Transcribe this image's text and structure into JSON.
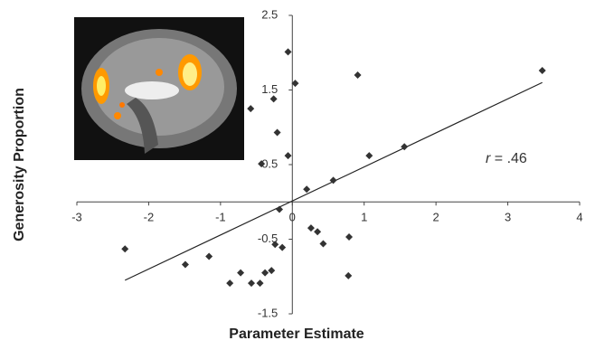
{
  "chart_data": {
    "type": "scatter",
    "xlabel": "Parameter Estimate",
    "ylabel": "Generosity Proportion",
    "annotation": {
      "symbol": "r",
      "text": "= .46"
    },
    "xlim": [
      -3,
      4
    ],
    "xticks": [
      -3,
      -2,
      -1,
      0,
      1,
      2,
      3,
      4
    ],
    "ylim": [
      -1.5,
      2.5
    ],
    "yticks": [
      -1.5,
      -0.5,
      0.5,
      1.5,
      2.5
    ],
    "color": "#333333",
    "x": [
      -2.33,
      -1.49,
      -1.16,
      -0.87,
      -0.72,
      -0.57,
      -0.45,
      -0.38,
      -0.29,
      -0.58,
      -0.26,
      -0.21,
      -0.24,
      -0.18,
      -0.14,
      -0.43,
      -0.06,
      -0.06,
      0.04,
      0.2,
      0.26,
      0.35,
      0.43,
      0.57,
      0.79,
      0.78,
      0.91,
      1.07,
      1.56,
      3.48
    ],
    "y": [
      -0.63,
      -0.84,
      -0.73,
      -1.09,
      -0.95,
      -1.09,
      -1.09,
      -0.95,
      -0.92,
      1.25,
      1.38,
      0.93,
      -0.57,
      -0.1,
      -0.61,
      0.51,
      2.01,
      0.62,
      1.59,
      0.17,
      -0.35,
      -0.4,
      -0.56,
      0.29,
      -0.47,
      -0.99,
      1.7,
      0.62,
      0.74,
      1.76
    ],
    "trendline": {
      "x": [
        -2.33,
        3.48
      ],
      "y": [
        -1.05,
        1.6
      ],
      "color": "#222222"
    }
  }
}
